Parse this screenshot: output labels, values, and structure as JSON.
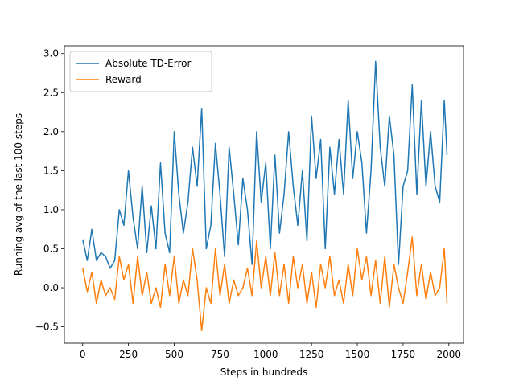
{
  "chart_data": {
    "type": "line",
    "xlabel": "Steps in hundreds",
    "ylabel": "Running  avg of the last 100 steps",
    "x": [
      0,
      25,
      50,
      75,
      100,
      125,
      150,
      175,
      200,
      225,
      250,
      275,
      300,
      325,
      350,
      375,
      400,
      425,
      450,
      475,
      500,
      525,
      550,
      575,
      600,
      625,
      650,
      675,
      700,
      725,
      750,
      775,
      800,
      825,
      850,
      875,
      900,
      925,
      950,
      975,
      1000,
      1025,
      1050,
      1075,
      1100,
      1125,
      1150,
      1175,
      1200,
      1225,
      1250,
      1275,
      1300,
      1325,
      1350,
      1375,
      1400,
      1425,
      1450,
      1475,
      1500,
      1525,
      1550,
      1575,
      1600,
      1625,
      1650,
      1675,
      1700,
      1725,
      1750,
      1775,
      1800,
      1825,
      1850,
      1875,
      1900,
      1925,
      1950,
      1975,
      1990
    ],
    "series": [
      {
        "name": "Absolute TD-Error",
        "color": "#1f77b4",
        "values": [
          0.62,
          0.35,
          0.75,
          0.35,
          0.45,
          0.4,
          0.25,
          0.35,
          1.0,
          0.8,
          1.5,
          0.9,
          0.5,
          1.3,
          0.45,
          1.05,
          0.5,
          1.6,
          0.7,
          0.45,
          2.0,
          1.2,
          0.7,
          1.1,
          1.8,
          1.3,
          2.3,
          0.5,
          0.8,
          1.85,
          1.2,
          0.4,
          1.8,
          1.2,
          0.55,
          1.4,
          1.0,
          0.3,
          2.0,
          1.1,
          1.6,
          0.5,
          1.7,
          0.7,
          1.2,
          2.0,
          1.3,
          0.8,
          1.5,
          0.6,
          2.2,
          1.4,
          1.9,
          0.5,
          1.8,
          1.2,
          1.9,
          1.2,
          2.4,
          1.4,
          2.0,
          1.6,
          0.7,
          1.5,
          2.9,
          1.8,
          1.3,
          2.2,
          1.7,
          0.3,
          1.3,
          1.5,
          2.6,
          1.2,
          2.4,
          1.3,
          2.0,
          1.3,
          1.1,
          2.4,
          1.7
        ]
      },
      {
        "name": "Reward",
        "color": "#ff7f0e",
        "values": [
          0.25,
          -0.05,
          0.2,
          -0.2,
          0.1,
          -0.1,
          0.0,
          -0.15,
          0.4,
          0.1,
          0.3,
          -0.2,
          0.4,
          -0.1,
          0.2,
          -0.2,
          0.0,
          -0.25,
          0.3,
          -0.1,
          0.4,
          -0.2,
          0.1,
          -0.1,
          0.5,
          0.1,
          -0.55,
          0.0,
          -0.2,
          0.5,
          -0.1,
          0.3,
          -0.2,
          0.1,
          -0.1,
          0.0,
          0.25,
          -0.1,
          0.6,
          0.0,
          0.4,
          -0.1,
          0.45,
          -0.1,
          0.3,
          -0.2,
          0.4,
          0.0,
          0.3,
          -0.2,
          0.2,
          -0.25,
          0.3,
          0.0,
          0.4,
          -0.1,
          0.1,
          -0.2,
          0.3,
          -0.1,
          0.5,
          0.1,
          0.4,
          -0.1,
          0.35,
          -0.2,
          0.4,
          -0.25,
          0.3,
          0.0,
          -0.2,
          0.2,
          0.65,
          -0.1,
          0.3,
          -0.15,
          0.2,
          -0.1,
          0.0,
          0.5,
          -0.2
        ]
      }
    ],
    "xlim": [
      -100,
      2080
    ],
    "ylim": [
      -0.71,
      3.1
    ],
    "xticks": [
      0,
      250,
      500,
      750,
      1000,
      1250,
      1500,
      1750,
      2000
    ],
    "yticks": [
      {
        "value": -0.5,
        "label": "−0.5"
      },
      {
        "value": 0,
        "label": "0.0"
      },
      0.5,
      {
        "value": 1,
        "label": "1.0"
      },
      1.5,
      {
        "value": 2,
        "label": "2.0"
      },
      2.5,
      {
        "value": 3,
        "label": "3.0"
      }
    ],
    "legend": "upper left",
    "grid": false
  }
}
